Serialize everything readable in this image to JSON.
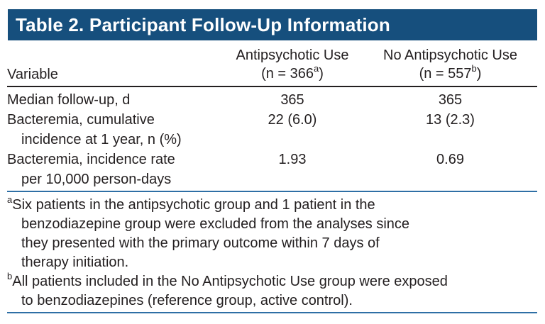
{
  "title": "Table 2. Participant Follow-Up Information",
  "colors": {
    "header_bar": "#164F7D",
    "rule_blue": "#2E6FA5",
    "rule_dark": "#231F20",
    "title_text": "#FFFFFF",
    "body_text": "#231F20"
  },
  "table": {
    "variable_header": "Variable",
    "columns": [
      {
        "name": "Antipsychotic Use",
        "n_prefix": "(n = 366",
        "n_sup": "a",
        "n_suffix": ")"
      },
      {
        "name": "No Antipsychotic Use",
        "n_prefix": "(n = 557",
        "n_sup": "b",
        "n_suffix": ")"
      }
    ],
    "rows": [
      {
        "label_line1": "Median follow-up, d",
        "label_line2": "",
        "col1": "365",
        "col2": "365"
      },
      {
        "label_line1": "Bacteremia, cumulative",
        "label_line2": "incidence at 1 year, n (%)",
        "col1": "22 (6.0)",
        "col2": "13 (2.3)"
      },
      {
        "label_line1": "Bacteremia, incidence rate",
        "label_line2": "per 10,000 person-days",
        "col1": "1.93",
        "col2": "0.69"
      }
    ]
  },
  "footnotes": [
    {
      "marker": "a",
      "lines": [
        "Six patients in the antipsychotic group and 1 patient in the",
        "benzodiazepine group were excluded from the analyses since",
        "they presented with the primary outcome within 7 days of",
        "therapy initiation."
      ]
    },
    {
      "marker": "b",
      "lines": [
        "All patients included in the No Antipsychotic Use group were exposed",
        "to benzodiazepines (reference group, active control)."
      ]
    }
  ]
}
